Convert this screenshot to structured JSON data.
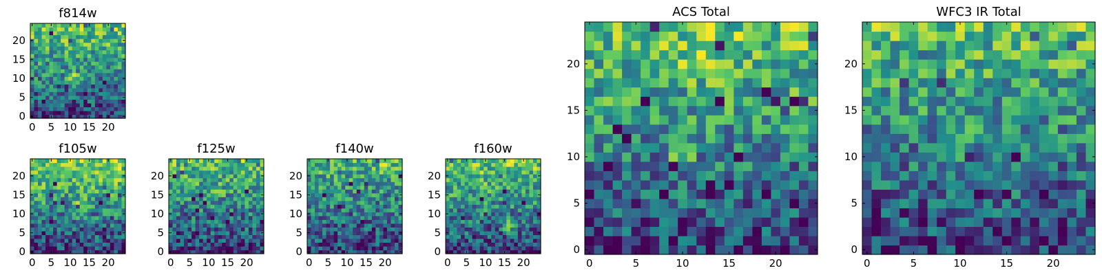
{
  "figure": {
    "description": "Grid of pixel-intensity heatmaps for HST filters and totals",
    "colormap": [
      "#440154",
      "#3b528b",
      "#21918c",
      "#5ec962",
      "#fde725"
    ]
  },
  "chart_data": [
    {
      "id": "f814w",
      "type": "heatmap",
      "title": "f814w",
      "grid_size": 25,
      "xlim": [
        0,
        24
      ],
      "ylim": [
        0,
        24
      ],
      "xticks": [
        "0",
        "5",
        "10",
        "15",
        "20"
      ],
      "yticks": [
        "0",
        "5",
        "10",
        "15",
        "20"
      ],
      "seed": 11,
      "gradient": 0.55,
      "spots": [
        {
          "x": 11,
          "y": 10,
          "amp": 0.35
        }
      ]
    },
    {
      "id": "f105w",
      "type": "heatmap",
      "title": "f105w",
      "grid_size": 25,
      "xlim": [
        0,
        24
      ],
      "ylim": [
        0,
        24
      ],
      "xticks": [
        "0",
        "5",
        "10",
        "15",
        "20"
      ],
      "yticks": [
        "0",
        "5",
        "10",
        "15",
        "20"
      ],
      "seed": 23,
      "gradient": 0.6,
      "spots": [
        {
          "x": 13,
          "y": 12,
          "amp": 0.25
        }
      ]
    },
    {
      "id": "f125w",
      "type": "heatmap",
      "title": "f125w",
      "grid_size": 25,
      "xlim": [
        0,
        24
      ],
      "ylim": [
        0,
        24
      ],
      "xticks": [
        "0",
        "5",
        "10",
        "15",
        "20"
      ],
      "yticks": [
        "0",
        "5",
        "10",
        "15",
        "20"
      ],
      "seed": 37,
      "gradient": 0.5,
      "spots": [
        {
          "x": 12,
          "y": 16,
          "amp": 0.2
        }
      ]
    },
    {
      "id": "f140w",
      "type": "heatmap",
      "title": "f140w",
      "grid_size": 25,
      "xlim": [
        0,
        24
      ],
      "ylim": [
        0,
        24
      ],
      "xticks": [
        "0",
        "5",
        "10",
        "15",
        "20"
      ],
      "yticks": [
        "0",
        "5",
        "10",
        "15",
        "20"
      ],
      "seed": 41,
      "gradient": 0.45,
      "spots": [
        {
          "x": 20,
          "y": 22,
          "amp": 0.3
        }
      ]
    },
    {
      "id": "f160w",
      "type": "heatmap",
      "title": "f160w",
      "grid_size": 25,
      "xlim": [
        0,
        24
      ],
      "ylim": [
        0,
        24
      ],
      "xticks": [
        "0",
        "5",
        "10",
        "15",
        "20"
      ],
      "yticks": [
        "0",
        "5",
        "10",
        "15",
        "20"
      ],
      "seed": 53,
      "gradient": 0.55,
      "spots": [
        {
          "x": 16,
          "y": 7,
          "amp": 0.3
        }
      ]
    },
    {
      "id": "acs-total",
      "type": "heatmap",
      "title": "ACS Total",
      "grid_size": 25,
      "xlim": [
        0,
        24
      ],
      "ylim": [
        0,
        24
      ],
      "xticks": [
        "0",
        "5",
        "10",
        "15",
        "20"
      ],
      "yticks": [
        "0",
        "5",
        "10",
        "15",
        "20"
      ],
      "seed": 67,
      "gradient": 0.55,
      "spots": [
        {
          "x": 10,
          "y": 11,
          "amp": 0.3
        },
        {
          "x": 12,
          "y": 20,
          "amp": 0.25
        }
      ]
    },
    {
      "id": "wfc3-ir-total",
      "type": "heatmap",
      "title": "WFC3 IR Total",
      "grid_size": 25,
      "xlim": [
        0,
        24
      ],
      "ylim": [
        0,
        24
      ],
      "xticks": [
        "0",
        "5",
        "10",
        "15",
        "20"
      ],
      "yticks": [
        "0",
        "5",
        "10",
        "15",
        "20"
      ],
      "seed": 79,
      "gradient": 0.5,
      "spots": [
        {
          "x": 10,
          "y": 12,
          "amp": 0.3
        }
      ]
    }
  ]
}
